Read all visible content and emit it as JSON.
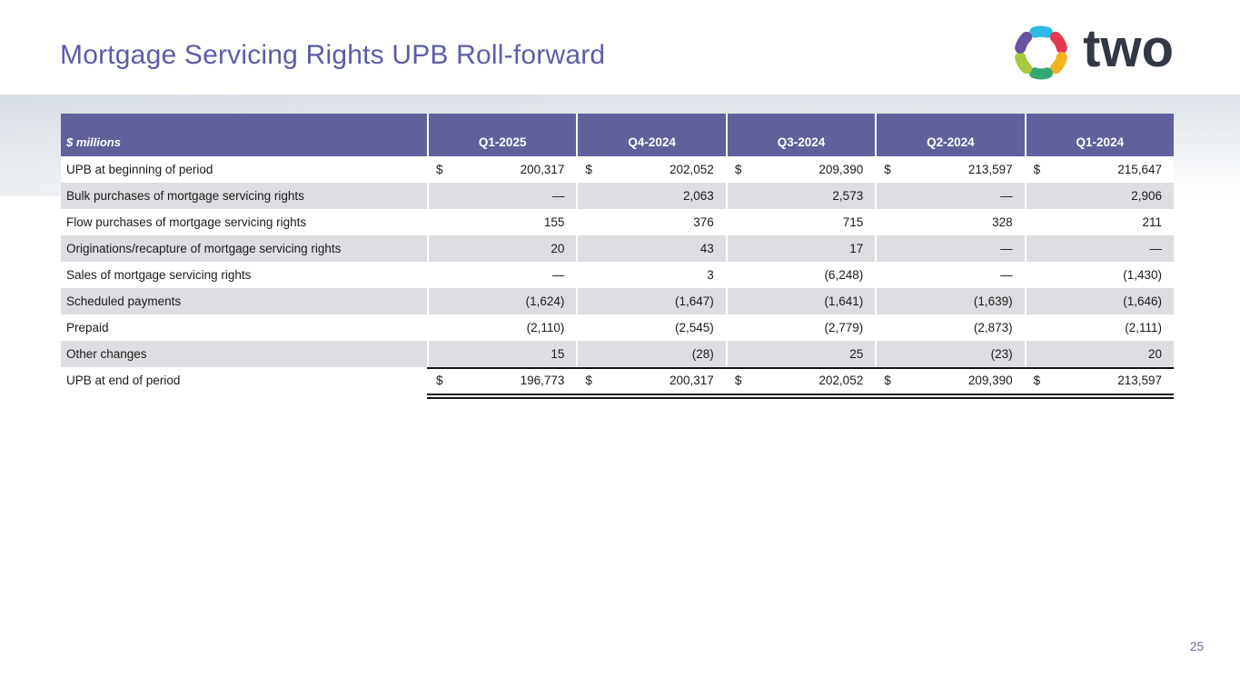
{
  "slide": {
    "title": "Mortgage Servicing Rights UPB Roll-forward",
    "page_number": "25"
  },
  "logo": {
    "wordmark": "two",
    "mark_icon": "pinwheel-hex-icon",
    "mark_segments": [
      {
        "name": "cyan",
        "color": "#2fb9e7"
      },
      {
        "name": "red",
        "color": "#e23a52"
      },
      {
        "name": "yellow",
        "color": "#f3b31d"
      },
      {
        "name": "green",
        "color": "#33a770"
      },
      {
        "name": "lime",
        "color": "#a6ca3d"
      },
      {
        "name": "purple",
        "color": "#6952a1"
      }
    ]
  },
  "colors": {
    "accent_purple": "#5f609c",
    "title_purple": "#5c5da6",
    "stripe_gray": "#dedee2",
    "text_dark": "#1b1b1b",
    "logo_navy": "#323945",
    "page_number": "#6c6d9e"
  },
  "table": {
    "unit_label": "$ millions",
    "currency_symbol": "$",
    "columns": [
      "Q1-2025",
      "Q4-2024",
      "Q3-2024",
      "Q2-2024",
      "Q1-2024"
    ],
    "rows": [
      {
        "label": "UPB at beginning of period",
        "dollar": true,
        "total": false,
        "values": [
          "200,317",
          "202,052",
          "209,390",
          "213,597",
          "215,647"
        ]
      },
      {
        "label": "Bulk purchases of mortgage servicing rights",
        "dollar": false,
        "total": false,
        "values": [
          "—",
          "2,063",
          "2,573",
          "—",
          "2,906"
        ]
      },
      {
        "label": "Flow purchases of mortgage servicing rights",
        "dollar": false,
        "total": false,
        "values": [
          "155",
          "376",
          "715",
          "328",
          "211"
        ]
      },
      {
        "label": "Originations/recapture of mortgage servicing rights",
        "dollar": false,
        "total": false,
        "values": [
          "20",
          "43",
          "17",
          "—",
          "—"
        ]
      },
      {
        "label": "Sales of mortgage servicing rights",
        "dollar": false,
        "total": false,
        "values": [
          "—",
          "3",
          "(6,248)",
          "—",
          "(1,430)"
        ]
      },
      {
        "label": "Scheduled payments",
        "dollar": false,
        "total": false,
        "values": [
          "(1,624)",
          "(1,647)",
          "(1,641)",
          "(1,639)",
          "(1,646)"
        ]
      },
      {
        "label": "Prepaid",
        "dollar": false,
        "total": false,
        "values": [
          "(2,110)",
          "(2,545)",
          "(2,779)",
          "(2,873)",
          "(2,111)"
        ]
      },
      {
        "label": "Other changes",
        "dollar": false,
        "total": false,
        "values": [
          "15",
          "(28)",
          "25",
          "(23)",
          "20"
        ]
      },
      {
        "label": "UPB at end of period",
        "dollar": true,
        "total": true,
        "values": [
          "196,773",
          "200,317",
          "202,052",
          "209,390",
          "213,597"
        ]
      }
    ]
  }
}
